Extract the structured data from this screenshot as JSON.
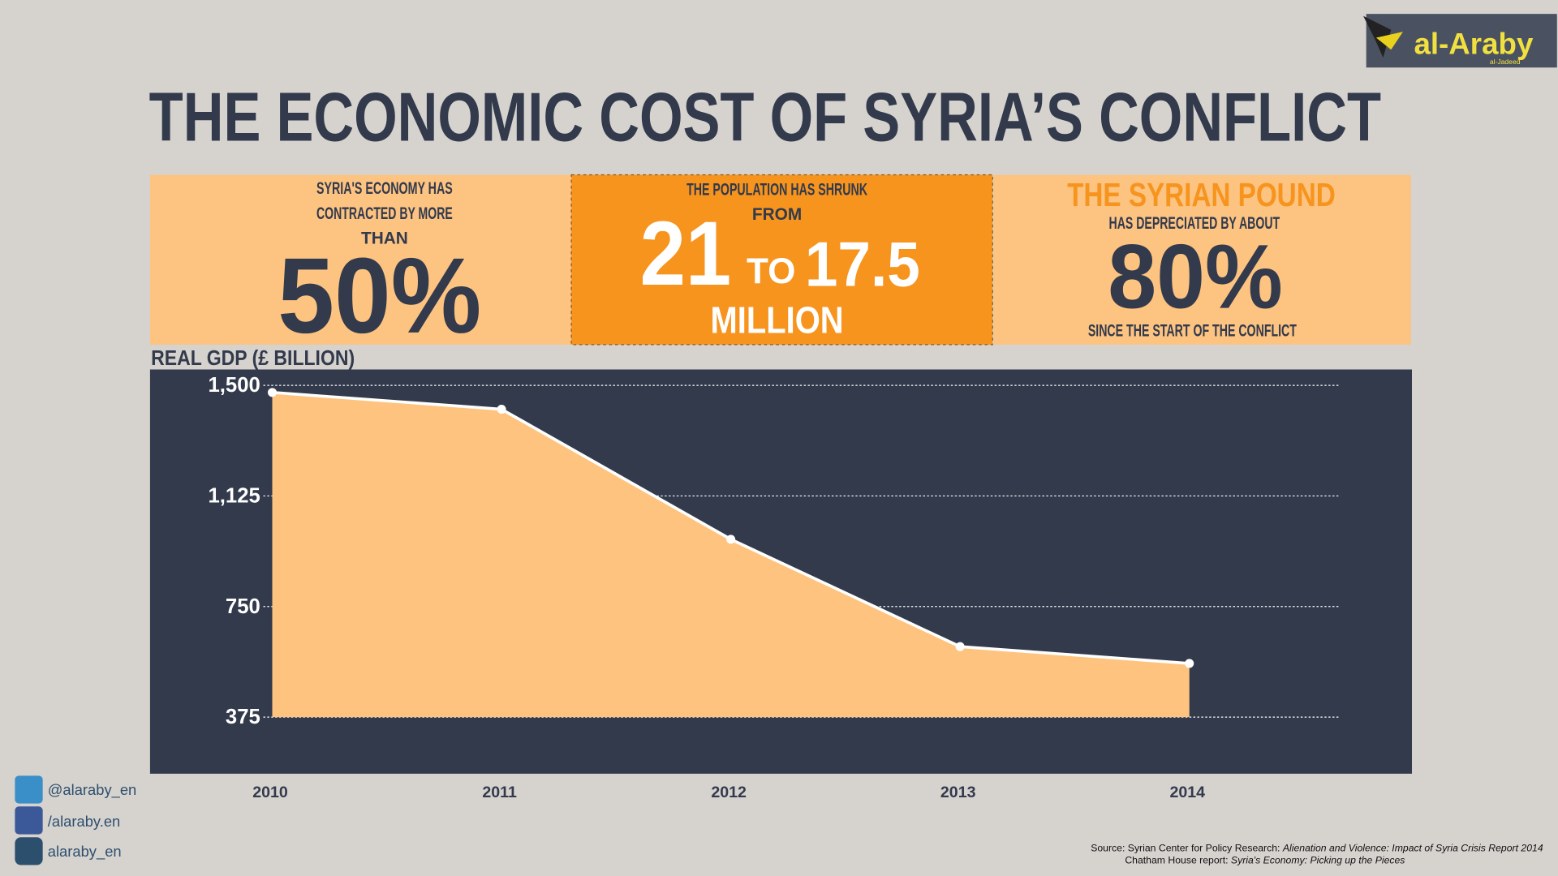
{
  "logo": {
    "name": "al-Araby",
    "sub": "al-Jadeed"
  },
  "title": "THE ECONOMIC COST OF SYRIA’S CONFLICT",
  "stats": [
    {
      "lines": [
        "SYRIA'S ECONOMY HAS",
        "CONTRACTED BY MORE",
        "THAN"
      ],
      "figure": "50%"
    },
    {
      "lines": [
        "THE POPULATION HAS SHRUNK",
        "FROM"
      ],
      "from": "21",
      "to": "TO",
      "to_value": "17.5",
      "unit": "MILLION"
    },
    {
      "heading": "THE SYRIAN POUND",
      "lines": [
        "HAS DEPRECIATED BY ABOUT"
      ],
      "figure": "80%",
      "after": "SINCE THE START OF THE CONFLICT"
    }
  ],
  "chart_data": {
    "type": "area",
    "title": "REAL GDP (£ BILLION)",
    "categories": [
      "2010",
      "2011",
      "2012",
      "2013",
      "2014"
    ],
    "values": [
      1476,
      1419,
      978,
      614,
      557
    ],
    "color": "#fec47f",
    "line_color": "#ffffff",
    "ylim": [
      375,
      1500
    ],
    "yticks": [
      {
        "value": 1500,
        "label": "1,500"
      },
      {
        "value": 1125,
        "label": "1,125"
      },
      750,
      375
    ],
    "grid": true
  },
  "social": [
    "@alaraby_en",
    "/alaraby.en",
    "alaraby_en"
  ],
  "source": {
    "line1_prefix": "Source: Syrian Center for Policy Research: ",
    "line1_title": "Alienation and Violence: Impact of Syria Crisis Report 2014",
    "line2_prefix": "Chatham House report: ",
    "line2_title": "Syria's Economy: Picking up the Pieces"
  }
}
